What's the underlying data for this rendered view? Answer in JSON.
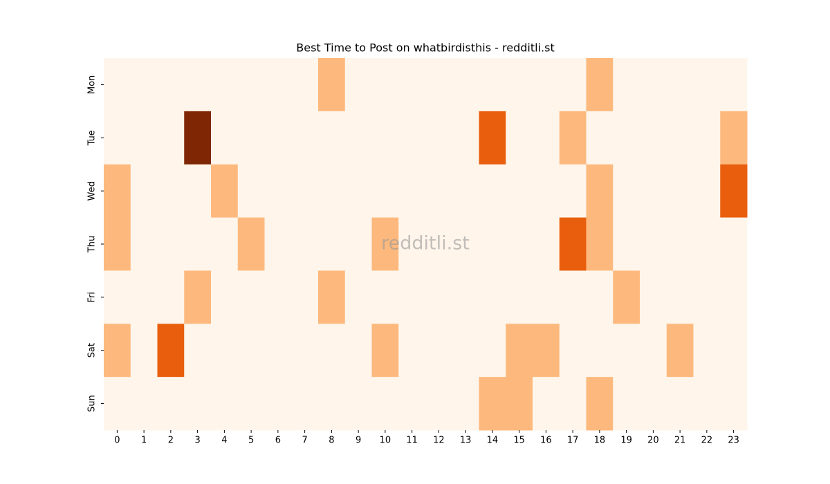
{
  "chart_data": {
    "type": "heatmap",
    "title": "Best Time to Post on whatbirdisthis - redditli.st",
    "watermark": "redditli.st",
    "x": [
      0,
      1,
      2,
      3,
      4,
      5,
      6,
      7,
      8,
      9,
      10,
      11,
      12,
      13,
      14,
      15,
      16,
      17,
      18,
      19,
      20,
      21,
      22,
      23
    ],
    "y": [
      "Mon",
      "Tue",
      "Wed",
      "Thu",
      "Fri",
      "Sat",
      "Sun"
    ],
    "values": [
      [
        0,
        0,
        0,
        0,
        0,
        0,
        0,
        0,
        1,
        0,
        0,
        0,
        0,
        0,
        0,
        0,
        0,
        0,
        1,
        0,
        0,
        0,
        0,
        0
      ],
      [
        0,
        0,
        0,
        3,
        0,
        0,
        0,
        0,
        0,
        0,
        0,
        0,
        0,
        0,
        2,
        0,
        0,
        1,
        0,
        0,
        0,
        0,
        0,
        1
      ],
      [
        1,
        0,
        0,
        0,
        1,
        0,
        0,
        0,
        0,
        0,
        0,
        0,
        0,
        0,
        0,
        0,
        0,
        0,
        1,
        0,
        0,
        0,
        0,
        2
      ],
      [
        1,
        0,
        0,
        0,
        0,
        1,
        0,
        0,
        0,
        0,
        1,
        0,
        0,
        0,
        0,
        0,
        0,
        2,
        1,
        0,
        0,
        0,
        0,
        0
      ],
      [
        0,
        0,
        0,
        1,
        0,
        0,
        0,
        0,
        1,
        0,
        0,
        0,
        0,
        0,
        0,
        0,
        0,
        0,
        0,
        1,
        0,
        0,
        0,
        0
      ],
      [
        1,
        0,
        2,
        0,
        0,
        0,
        0,
        0,
        0,
        0,
        1,
        0,
        0,
        0,
        0,
        1,
        1,
        0,
        0,
        0,
        0,
        1,
        0,
        0
      ],
      [
        0,
        0,
        0,
        0,
        0,
        0,
        0,
        0,
        0,
        0,
        0,
        0,
        0,
        0,
        1,
        1,
        0,
        0,
        1,
        0,
        0,
        0,
        0,
        0
      ]
    ],
    "zlim": [
      0,
      3
    ],
    "colors": [
      "#fff5eb",
      "#fdb97d",
      "#e95e0d",
      "#7f2704"
    ]
  }
}
